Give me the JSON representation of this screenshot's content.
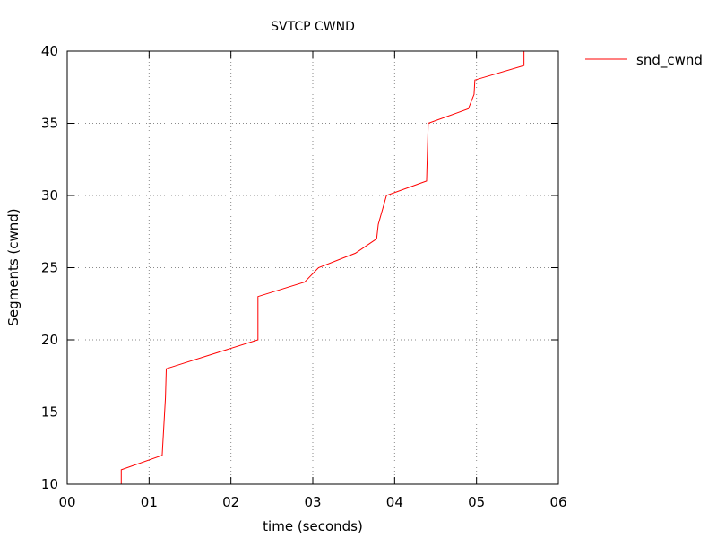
{
  "chart_data": {
    "type": "line",
    "title": "SVTCP CWND",
    "xlabel": "time (seconds)",
    "ylabel": "Segments (cwnd)",
    "xlim": [
      0,
      6
    ],
    "ylim": [
      10,
      40
    ],
    "x_ticks": [
      0,
      1,
      2,
      3,
      4,
      5,
      6
    ],
    "x_tick_labels": [
      "00",
      "01",
      "02",
      "03",
      "04",
      "05",
      "06"
    ],
    "y_ticks": [
      10,
      15,
      20,
      25,
      30,
      35,
      40
    ],
    "y_tick_labels": [
      "10",
      "15",
      "20",
      "25",
      "30",
      "35",
      "40"
    ],
    "grid": true,
    "legend_position": "top-right, outside plot",
    "series": [
      {
        "name": "snd_cwnd",
        "color": "#ff0000",
        "points": [
          [
            0.66,
            10
          ],
          [
            0.66,
            11
          ],
          [
            1.16,
            12
          ],
          [
            1.18,
            14
          ],
          [
            1.2,
            16
          ],
          [
            1.21,
            18
          ],
          [
            2.33,
            20
          ],
          [
            2.33,
            23
          ],
          [
            2.9,
            24
          ],
          [
            3.07,
            25
          ],
          [
            3.52,
            26
          ],
          [
            3.78,
            27
          ],
          [
            3.8,
            28
          ],
          [
            3.9,
            30
          ],
          [
            4.39,
            31
          ],
          [
            4.4,
            33
          ],
          [
            4.41,
            35
          ],
          [
            4.9,
            36
          ],
          [
            4.97,
            37
          ],
          [
            4.98,
            38
          ],
          [
            5.58,
            39
          ],
          [
            5.58,
            40
          ]
        ]
      }
    ]
  }
}
